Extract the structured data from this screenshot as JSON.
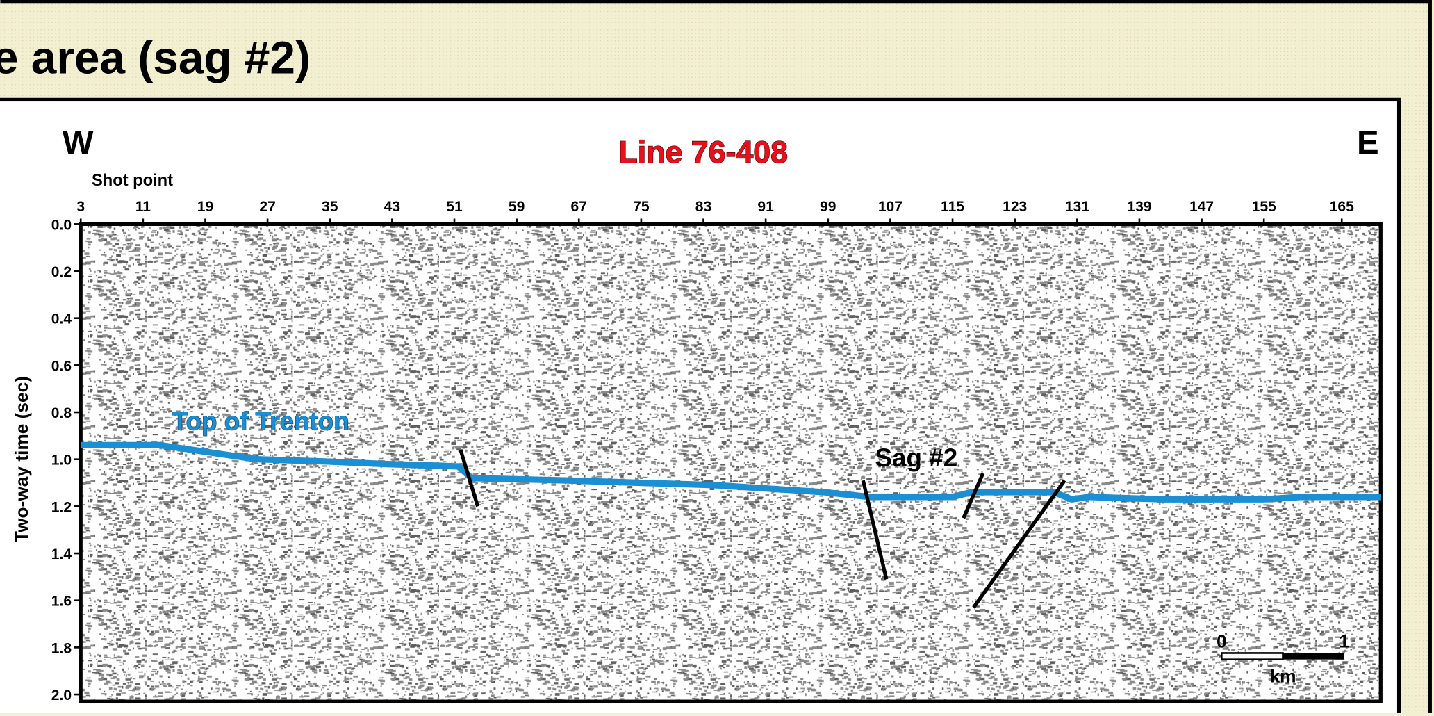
{
  "header": {
    "title": "e area (sag #2)"
  },
  "chart_data": {
    "type": "line",
    "title": "Line 76-408",
    "x_label": "Shot point",
    "y_label": "Two-way time (sec)",
    "direction_left": "W",
    "direction_right": "E",
    "xlim": [
      3,
      170
    ],
    "ylim": [
      0,
      2.03
    ],
    "y_inverted": true,
    "xticks": [
      3,
      11,
      19,
      27,
      35,
      43,
      51,
      59,
      67,
      75,
      83,
      91,
      99,
      107,
      115,
      123,
      131,
      139,
      147,
      155,
      165
    ],
    "yticks": [
      {
        "value": 0,
        "label": "0.0"
      },
      0.2,
      0.4,
      0.6,
      0.8,
      {
        "value": 1,
        "label": "1.0"
      },
      1.2,
      1.4,
      1.6,
      1.8,
      {
        "value": 2,
        "label": "2.0"
      }
    ],
    "series": [
      {
        "name": "Top of Trenton",
        "color": "#1b8fd3",
        "x": [
          3,
          13.2,
          17.4,
          25.6,
          35,
          42,
          51.5,
          53.2,
          65.6,
          84.4,
          98.5,
          104.4,
          115,
          117.4,
          128,
          130.3,
          132.6,
          142,
          155,
          159.7,
          170
        ],
        "values": [
          0.94,
          0.94,
          0.96,
          1.0,
          1.01,
          1.02,
          1.03,
          1.08,
          1.09,
          1.11,
          1.14,
          1.16,
          1.16,
          1.14,
          1.14,
          1.17,
          1.16,
          1.17,
          1.17,
          1.16,
          1.16
        ]
      }
    ],
    "faults": [
      {
        "color": "#000000",
        "x": [
          51.8,
          54
        ],
        "values": [
          0.96,
          1.2
        ]
      },
      {
        "color": "#000000",
        "x": [
          103.5,
          106.5
        ],
        "values": [
          1.09,
          1.51
        ]
      },
      {
        "color": "#000000",
        "x": [
          118.9,
          116.4
        ],
        "values": [
          1.06,
          1.25
        ]
      },
      {
        "color": "#000000",
        "x": [
          129.4,
          117.7
        ],
        "values": [
          1.09,
          1.63
        ]
      }
    ],
    "annotations": [
      "Sag #2"
    ],
    "scale_bar": {
      "min": 0,
      "max": 1,
      "unit": "km"
    }
  }
}
